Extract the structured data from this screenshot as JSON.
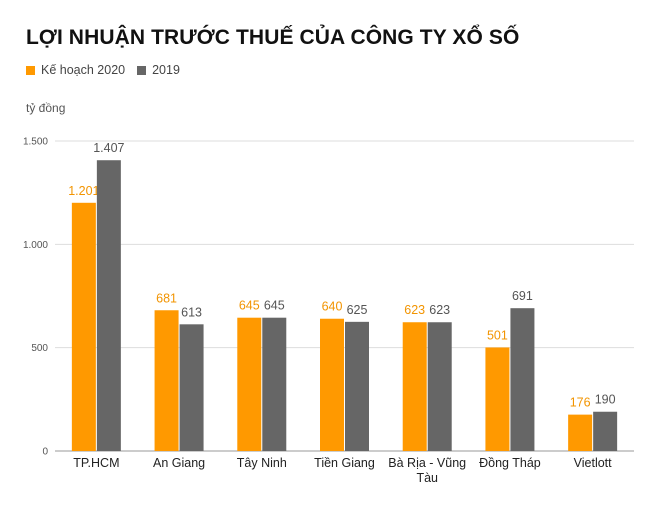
{
  "chart_data": {
    "type": "bar",
    "title": "LỢI NHUẬN TRƯỚC THUẾ CỦA CÔNG TY XỔ SỐ",
    "unit_label": "tỷ đồng",
    "categories": [
      [
        "TP.HCM"
      ],
      [
        "An Giang"
      ],
      [
        "Tây Ninh"
      ],
      [
        "Tiền Giang"
      ],
      [
        "Bà Rịa - Vũng",
        "Tàu"
      ],
      [
        "Đồng Tháp"
      ],
      [
        "Vietlott"
      ]
    ],
    "series": [
      {
        "name": "Kế hoạch 2020",
        "color": "#ff9900",
        "values": [
          1201,
          681,
          645,
          640,
          623,
          501,
          176
        ],
        "labels": [
          "1.201",
          "681",
          "645",
          "640",
          "623",
          "501",
          "176"
        ]
      },
      {
        "name": "2019",
        "color": "#666666",
        "values": [
          1407,
          613,
          645,
          625,
          623,
          691,
          190
        ],
        "labels": [
          "1.407",
          "613",
          "645",
          "625",
          "623",
          "691",
          "190"
        ]
      }
    ],
    "yticks": [
      0,
      500,
      1000,
      1500
    ],
    "ytick_labels": [
      "0",
      "500",
      "1.000",
      "1.500"
    ],
    "ylim": [
      0,
      1500
    ],
    "grid": true,
    "legend_position": "top-left"
  }
}
